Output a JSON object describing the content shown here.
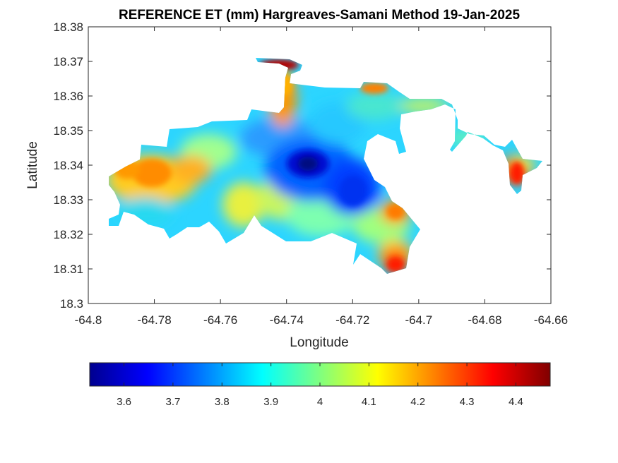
{
  "chart_data": {
    "type": "heatmap",
    "subtype": "filled-contour-map",
    "title": "REFERENCE ET (mm) Hargreaves-Samani Method  19-Jan-2025",
    "xlabel": "Longitude",
    "ylabel": "Latitude",
    "xlim": [
      -64.8,
      -64.66
    ],
    "ylim": [
      18.3,
      18.38
    ],
    "xticks": [
      "-64.8",
      "-64.78",
      "-64.76",
      "-64.74",
      "-64.72",
      "-64.7",
      "-64.68",
      "-64.66"
    ],
    "yticks": [
      "18.3",
      "18.31",
      "18.32",
      "18.33",
      "18.34",
      "18.35",
      "18.36",
      "18.37",
      "18.38"
    ],
    "grid": false,
    "colormap": "jet",
    "colorbar": {
      "orientation": "horizontal",
      "placement": "below",
      "range": [
        3.53,
        4.47
      ],
      "ticks": [
        "3.6",
        "3.7",
        "3.8",
        "3.9",
        "4",
        "4.1",
        "4.2",
        "4.3",
        "4.4"
      ]
    },
    "regions": [
      {
        "name": "low-et-core",
        "lon": -64.7335,
        "lat": 18.3405,
        "value": 3.55
      },
      {
        "name": "blue-east-lobe",
        "lon": -64.7185,
        "lat": 18.3325,
        "value": 3.67
      },
      {
        "name": "west-orange-plateau",
        "lon": -64.778,
        "lat": 18.336,
        "value": 4.2
      },
      {
        "name": "north-peak",
        "lon": -64.7415,
        "lat": 18.3695,
        "value": 4.45
      },
      {
        "name": "east-cape",
        "lon": -64.6705,
        "lat": 18.336,
        "value": 4.33
      },
      {
        "name": "south-point",
        "lon": -64.711,
        "lat": 18.311,
        "value": 4.3
      },
      {
        "name": "southeast-bump",
        "lon": -64.7085,
        "lat": 18.325,
        "value": 4.2
      },
      {
        "name": "central-south-lobe",
        "lon": -64.7515,
        "lat": 18.328,
        "value": 4.05
      }
    ]
  },
  "colors": {
    "colormap_stops": [
      "#00008f",
      "#0000ff",
      "#00ffff",
      "#ffff00",
      "#ff0000",
      "#800000"
    ],
    "axes": "#262626",
    "background": "#ffffff"
  }
}
